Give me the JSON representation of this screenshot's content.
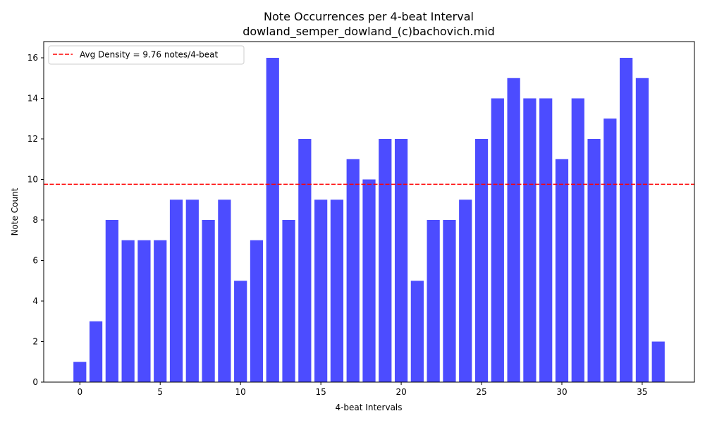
{
  "chart_data": {
    "type": "bar",
    "title_line1": "Note Occurrences per 4-beat Interval",
    "title_line2": "dowland_semper_dowland_(c)bachovich.mid",
    "xlabel": "4-beat Intervals",
    "ylabel": "Note Count",
    "x": [
      0,
      1,
      2,
      3,
      4,
      5,
      6,
      7,
      8,
      9,
      10,
      11,
      12,
      13,
      14,
      15,
      16,
      17,
      18,
      19,
      20,
      21,
      22,
      23,
      24,
      25,
      26,
      27,
      28,
      29,
      30,
      31,
      32,
      33,
      34,
      35,
      36
    ],
    "values": [
      1,
      3,
      8,
      7,
      7,
      7,
      9,
      9,
      8,
      9,
      5,
      7,
      16,
      8,
      12,
      9,
      9,
      11,
      10,
      12,
      12,
      5,
      8,
      8,
      9,
      12,
      14,
      15,
      14,
      14,
      11,
      14,
      12,
      13,
      16,
      15,
      2
    ],
    "bar_color": "#0000ff",
    "bar_opacity": 0.7,
    "xlim": [
      -2.25,
      38.25
    ],
    "ylim": [
      0,
      16.8
    ],
    "xticks": [
      0,
      5,
      10,
      15,
      20,
      25,
      30,
      35
    ],
    "xtick_labels": [
      "0",
      "5",
      "10",
      "15",
      "20",
      "25",
      "30",
      "35"
    ],
    "yticks": [
      0,
      2,
      4,
      6,
      8,
      10,
      12,
      14,
      16
    ],
    "ytick_labels": [
      "0",
      "2",
      "4",
      "6",
      "8",
      "10",
      "12",
      "14",
      "16"
    ],
    "avg_line": {
      "value": 9.76,
      "label": "Avg Density = 9.76 notes/4-beat",
      "color": "#ff0000"
    },
    "legend_position": "upper-left",
    "grid": false
  }
}
